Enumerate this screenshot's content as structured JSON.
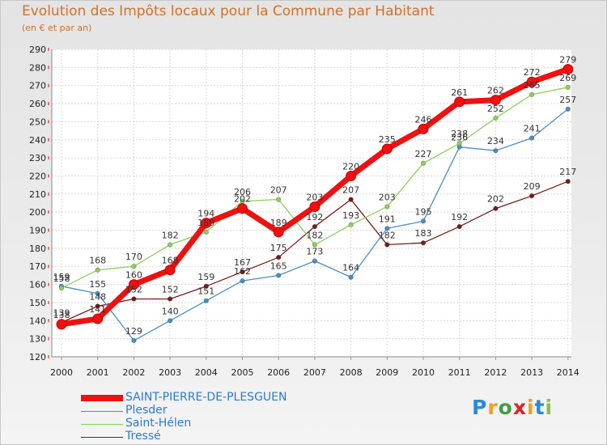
{
  "header": {
    "title": "Evolution des Impôts locaux pour la Commune par Habitant",
    "subtitle": "(en € et par an)"
  },
  "chart_data": {
    "type": "line",
    "title": "Evolution des Impôts locaux pour la Commune par Habitant",
    "subtitle": "(en € et par an)",
    "xlabel": "",
    "ylabel": "",
    "ylim": [
      120,
      290
    ],
    "y_ticks": [
      120,
      130,
      140,
      150,
      160,
      170,
      180,
      190,
      200,
      210,
      220,
      230,
      240,
      250,
      260,
      270,
      280,
      290
    ],
    "categories": [
      "2000",
      "2001",
      "2002",
      "2003",
      "2004",
      "2005",
      "2006",
      "2007",
      "2008",
      "2009",
      "2010",
      "2011",
      "2012",
      "2013",
      "2014"
    ],
    "grid": true,
    "legend_position": "bottom-left",
    "series": [
      {
        "name": "Tressé",
        "color": "#7a1a1a",
        "values": [
          139,
          148,
          152,
          152,
          159,
          167,
          175,
          192,
          207,
          182,
          183,
          192,
          202,
          209,
          217
        ]
      },
      {
        "name": "Plesder",
        "color": "#4a8ec8",
        "values": [
          159,
          155,
          129,
          140,
          151,
          162,
          165,
          173,
          164,
          191,
          195,
          236,
          234,
          241,
          257
        ]
      },
      {
        "name": "Saint-Hélen",
        "color": "#8ecf5a",
        "values": [
          158,
          168,
          170,
          182,
          189,
          206,
          207,
          182,
          193,
          203,
          227,
          238,
          252,
          265,
          269
        ]
      },
      {
        "name": "SAINT-PIERRE-DE-PLESGUEN",
        "color": "#ee1111",
        "values": [
          138,
          141,
          160,
          168,
          194,
          202,
          189,
          203,
          220,
          235,
          246,
          261,
          262,
          272,
          279
        ]
      }
    ]
  },
  "legend": {
    "items": [
      {
        "label": "SAINT-PIERRE-DE-PLESGUEN",
        "color": "#ee1111"
      },
      {
        "label": "Plesder",
        "color": "#4a8ec8"
      },
      {
        "label": "Saint-Hélen",
        "color": "#8ecf5a"
      },
      {
        "label": "Tressé",
        "color": "#7a1a1a"
      }
    ]
  },
  "logo": {
    "letters": [
      "P",
      "r",
      "o",
      "x",
      "i",
      "t",
      "i"
    ],
    "colors": [
      "#2a8ad8",
      "#f0a020",
      "#40a040",
      "#e02020",
      "#f0a020",
      "#2a8ad8",
      "#8ac040"
    ]
  }
}
